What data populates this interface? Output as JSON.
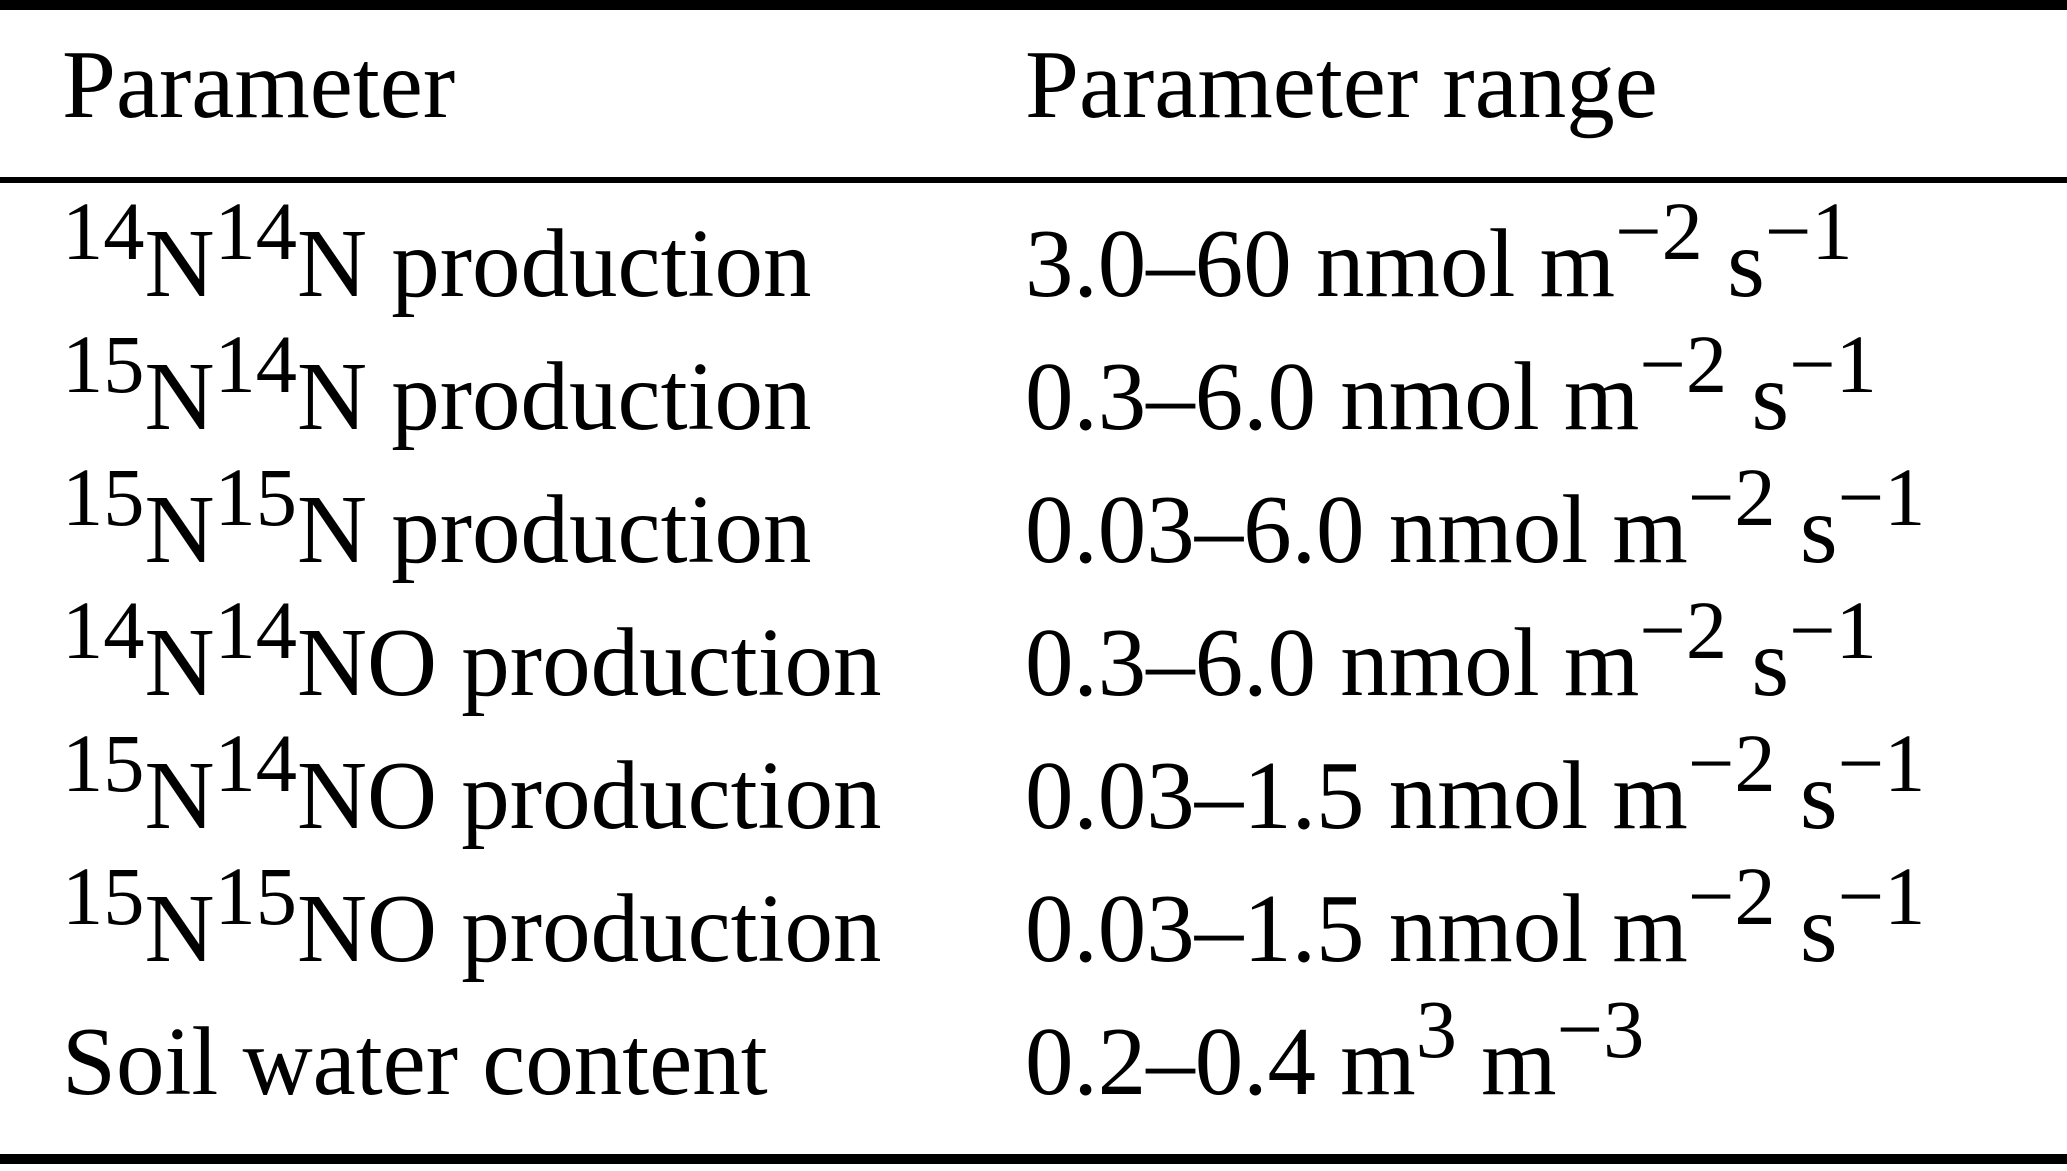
{
  "page": {
    "background_color": "#ffffff",
    "text_color": "#000000"
  },
  "table": {
    "columns": [
      {
        "label": "Parameter"
      },
      {
        "label": "Parameter range"
      }
    ],
    "rows": [
      {
        "parameter": [
          {
            "sup": "14"
          },
          {
            "t": "N"
          },
          {
            "sup": "14"
          },
          {
            "t": "N production"
          }
        ],
        "range": [
          {
            "t": "3.0–60 nmol m"
          },
          {
            "sup": "−2"
          },
          {
            "t": " s"
          },
          {
            "sup": "−1"
          }
        ]
      },
      {
        "parameter": [
          {
            "sup": "15"
          },
          {
            "t": "N"
          },
          {
            "sup": "14"
          },
          {
            "t": "N production"
          }
        ],
        "range": [
          {
            "t": "0.3–6.0 nmol m"
          },
          {
            "sup": "−2"
          },
          {
            "t": " s"
          },
          {
            "sup": "−1"
          }
        ]
      },
      {
        "parameter": [
          {
            "sup": "15"
          },
          {
            "t": "N"
          },
          {
            "sup": "15"
          },
          {
            "t": "N production"
          }
        ],
        "range": [
          {
            "t": "0.03–6.0 nmol m"
          },
          {
            "sup": "−2"
          },
          {
            "t": " s"
          },
          {
            "sup": "−1"
          }
        ]
      },
      {
        "parameter": [
          {
            "sup": "14"
          },
          {
            "t": "N"
          },
          {
            "sup": "14"
          },
          {
            "t": "NO production"
          }
        ],
        "range": [
          {
            "t": "0.3–6.0 nmol m"
          },
          {
            "sup": "−2"
          },
          {
            "t": " s"
          },
          {
            "sup": "−1"
          }
        ]
      },
      {
        "parameter": [
          {
            "sup": "15"
          },
          {
            "t": "N"
          },
          {
            "sup": "14"
          },
          {
            "t": "NO production"
          }
        ],
        "range": [
          {
            "t": "0.03–1.5 nmol m"
          },
          {
            "sup": "−2"
          },
          {
            "t": " s"
          },
          {
            "sup": "−1"
          }
        ]
      },
      {
        "parameter": [
          {
            "sup": "15"
          },
          {
            "t": "N"
          },
          {
            "sup": "15"
          },
          {
            "t": "NO production"
          }
        ],
        "range": [
          {
            "t": "0.03–1.5 nmol m"
          },
          {
            "sup": "−2"
          },
          {
            "t": " s"
          },
          {
            "sup": "−1"
          }
        ]
      },
      {
        "parameter": [
          {
            "t": "Soil water content"
          }
        ],
        "range": [
          {
            "t": "0.2–0.4 m"
          },
          {
            "sup": "3"
          },
          {
            "t": " m"
          },
          {
            "sup": "−3"
          }
        ]
      }
    ]
  }
}
